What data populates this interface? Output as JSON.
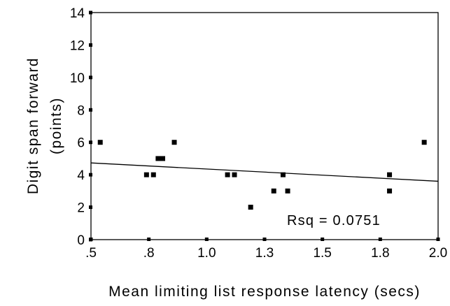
{
  "chart_data": {
    "type": "scatter",
    "title": "",
    "xlabel": "Mean limiting list response latency (secs)",
    "ylabel": [
      "Digit span forward",
      "(points)"
    ],
    "xlim": [
      0.5,
      2.0
    ],
    "ylim": [
      0,
      14
    ],
    "x_ticks": [
      0.5,
      0.75,
      1.0,
      1.25,
      1.5,
      1.75,
      2.0
    ],
    "x_tick_labels": [
      ".5",
      ".8",
      "1.0",
      "1.3",
      "1.5",
      "1.8",
      "2.0"
    ],
    "y_ticks": [
      0,
      2,
      4,
      6,
      8,
      10,
      12,
      14
    ],
    "y_tick_labels": [
      "0",
      "2",
      "4",
      "6",
      "8",
      "10",
      "12",
      "14"
    ],
    "grid": false,
    "legend": "none",
    "points": [
      {
        "x": 0.54,
        "y": 6
      },
      {
        "x": 0.74,
        "y": 4
      },
      {
        "x": 0.77,
        "y": 4
      },
      {
        "x": 0.79,
        "y": 5
      },
      {
        "x": 0.81,
        "y": 5
      },
      {
        "x": 0.86,
        "y": 6
      },
      {
        "x": 1.09,
        "y": 4
      },
      {
        "x": 1.12,
        "y": 4
      },
      {
        "x": 1.19,
        "y": 2
      },
      {
        "x": 1.29,
        "y": 3
      },
      {
        "x": 1.33,
        "y": 4
      },
      {
        "x": 1.35,
        "y": 3
      },
      {
        "x": 1.79,
        "y": 4
      },
      {
        "x": 1.79,
        "y": 3
      },
      {
        "x": 1.94,
        "y": 6
      }
    ],
    "fit_line": {
      "x": [
        0.5,
        2.0
      ],
      "y": [
        4.73,
        3.6
      ]
    },
    "annotation": "Rsq = 0.0751",
    "colors": {
      "marker": "#000000",
      "line": "#000000",
      "axis": "#000000"
    }
  }
}
